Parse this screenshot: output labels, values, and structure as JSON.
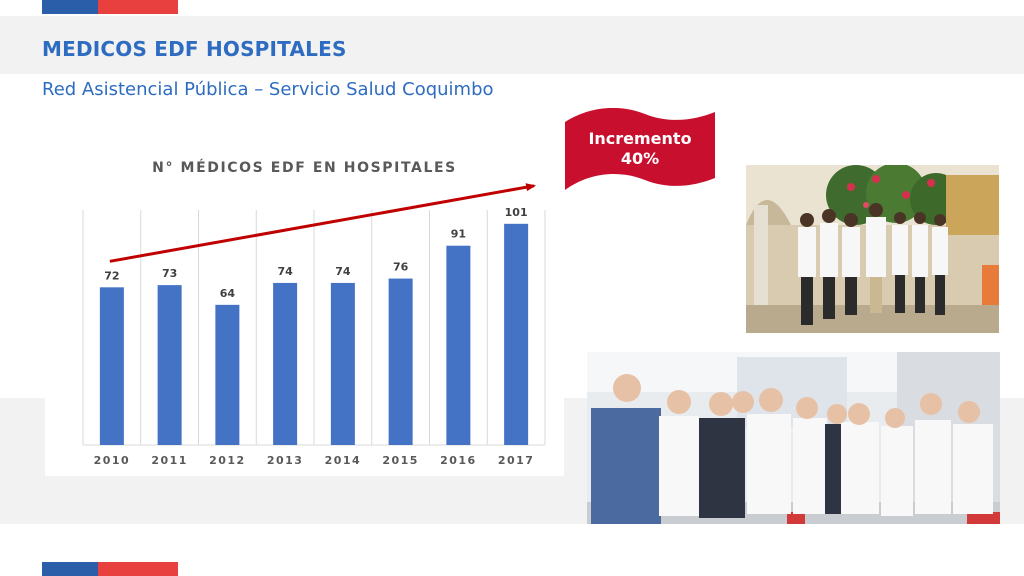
{
  "header": {
    "title": "MEDICOS EDF HOSPITALES",
    "subtitle": "Red Asistencial Pública – Servicio Salud Coquimbo"
  },
  "callout": {
    "line1": "Incremento",
    "line2": "40%",
    "color": "#c8102e"
  },
  "colors": {
    "brand_blue": "#2a5ea8",
    "brand_red": "#e8403f",
    "title_blue": "#2d6cc1",
    "bar_fill": "#4472c4",
    "trend_arrow": "#c00000"
  },
  "chart_data": {
    "type": "bar",
    "title": "N° MÉDICOS EDF EN HOSPITALES",
    "categories": [
      "2010",
      "2011",
      "2012",
      "2013",
      "2014",
      "2015",
      "2016",
      "2017"
    ],
    "values": [
      72,
      73,
      64,
      74,
      74,
      76,
      91,
      101
    ],
    "data_labels": [
      "72",
      "73",
      "64",
      "74",
      "74",
      "76",
      "91",
      "101"
    ],
    "xlabel": "",
    "ylabel": "",
    "grid": "vertical",
    "legend": "none",
    "trend_arrow": {
      "from": "2010",
      "to": "2017",
      "direction": "up"
    }
  },
  "photos": [
    {
      "name": "group-photo-courtyard"
    },
    {
      "name": "group-photo-hospital-room"
    }
  ]
}
